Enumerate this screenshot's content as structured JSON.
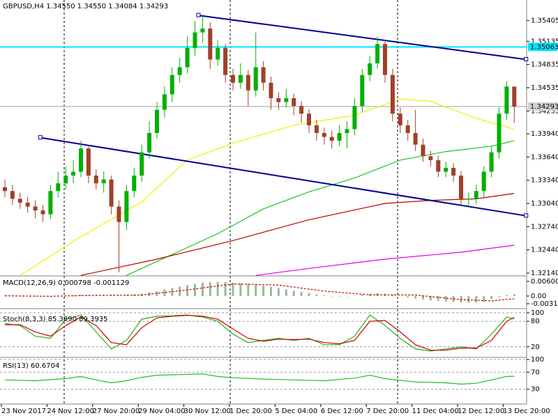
{
  "chart_data": [
    {
      "type": "candlestick",
      "title": "GBPUSD,H4  1.34550 1.34550 1.34084 1.34293",
      "up_color": "#00b000",
      "down_color": "#a0402a",
      "categories": [
        "23 Nov 2017",
        null,
        null,
        null,
        null,
        null,
        "24 Nov 12:00",
        null,
        null,
        null,
        null,
        null,
        "27 Nov 20:00",
        null,
        null,
        null,
        null,
        null,
        "29 Nov 04:00",
        null,
        null,
        null,
        null,
        null,
        "30 Nov 12:00",
        null,
        null,
        null,
        null,
        null,
        "1 Dec 20:00",
        null,
        null,
        null,
        null,
        null,
        "5 Dec 04:00",
        null,
        null,
        null,
        null,
        null,
        "6 Dec 12:00",
        null,
        null,
        null,
        null,
        null,
        "7 Dec 20:00",
        null,
        null,
        null,
        null,
        null,
        "11 Dec 04:00",
        null,
        null,
        null,
        null,
        null,
        "12 Dec 12:00",
        null,
        null,
        null,
        null,
        null,
        "13 Dec 20:00",
        null
      ],
      "ohlc": [
        [
          1.3325,
          1.3335,
          1.3312,
          1.332
        ],
        [
          1.332,
          1.3328,
          1.3302,
          1.331
        ],
        [
          1.331,
          1.3318,
          1.3297,
          1.3305
        ],
        [
          1.3305,
          1.3312,
          1.3292,
          1.33
        ],
        [
          1.33,
          1.3308,
          1.3285,
          1.3295
        ],
        [
          1.3295,
          1.3302,
          1.328,
          1.329
        ],
        [
          1.329,
          1.3328,
          1.3284,
          1.332
        ],
        [
          1.332,
          1.3345,
          1.3312,
          1.333
        ],
        [
          1.333,
          1.3352,
          1.3322,
          1.334
        ],
        [
          1.334,
          1.336,
          1.333,
          1.3345
        ],
        [
          1.3345,
          1.3385,
          1.3338,
          1.3375
        ],
        [
          1.3375,
          1.338,
          1.333,
          1.334
        ],
        [
          1.334,
          1.3348,
          1.3322,
          1.333
        ],
        [
          1.333,
          1.3345,
          1.3318,
          1.3335
        ],
        [
          1.3335,
          1.334,
          1.329,
          1.33
        ],
        [
          1.33,
          1.3308,
          1.3215,
          1.328
        ],
        [
          1.328,
          1.3328,
          1.327,
          1.332
        ],
        [
          1.332,
          1.335,
          1.3312,
          1.334
        ],
        [
          1.334,
          1.338,
          1.3332,
          1.337
        ],
        [
          1.337,
          1.341,
          1.3362,
          1.3395
        ],
        [
          1.3395,
          1.3435,
          1.3388,
          1.3425
        ],
        [
          1.3425,
          1.3455,
          1.3415,
          1.3445
        ],
        [
          1.3445,
          1.348,
          1.3435,
          1.347
        ],
        [
          1.347,
          1.3492,
          1.346,
          1.348
        ],
        [
          1.348,
          1.352,
          1.3472,
          1.3505
        ],
        [
          1.3505,
          1.354,
          1.3495,
          1.3525
        ],
        [
          1.3525,
          1.3545,
          1.3512,
          1.353
        ],
        [
          1.353,
          1.3538,
          1.3478,
          1.349
        ],
        [
          1.349,
          1.3515,
          1.3482,
          1.3505
        ],
        [
          1.3505,
          1.351,
          1.346,
          1.347
        ],
        [
          1.347,
          1.3478,
          1.345,
          1.346
        ],
        [
          1.346,
          1.3485,
          1.3452,
          1.347
        ],
        [
          1.347,
          1.3476,
          1.343,
          1.345
        ],
        [
          1.345,
          1.3525,
          1.3442,
          1.348
        ],
        [
          1.348,
          1.3488,
          1.345,
          1.346
        ],
        [
          1.346,
          1.3468,
          1.3425,
          1.344
        ],
        [
          1.344,
          1.3448,
          1.3425,
          1.3435
        ],
        [
          1.3435,
          1.3452,
          1.3428,
          1.344
        ],
        [
          1.344,
          1.3446,
          1.3418,
          1.343
        ],
        [
          1.343,
          1.3436,
          1.3408,
          1.342
        ],
        [
          1.342,
          1.3426,
          1.3395,
          1.3405
        ],
        [
          1.3405,
          1.3412,
          1.3385,
          1.3395
        ],
        [
          1.3395,
          1.3402,
          1.338,
          1.339
        ],
        [
          1.339,
          1.3398,
          1.3375,
          1.3385
        ],
        [
          1.3385,
          1.3405,
          1.3378,
          1.3395
        ],
        [
          1.3395,
          1.341,
          1.3375,
          1.34
        ],
        [
          1.34,
          1.344,
          1.3392,
          1.343
        ],
        [
          1.343,
          1.3478,
          1.3422,
          1.347
        ],
        [
          1.347,
          1.3495,
          1.3462,
          1.3485
        ],
        [
          1.3485,
          1.352,
          1.3478,
          1.351
        ],
        [
          1.351,
          1.3515,
          1.346,
          1.347
        ],
        [
          1.347,
          1.3478,
          1.341,
          1.342
        ],
        [
          1.342,
          1.3428,
          1.3395,
          1.3405
        ],
        [
          1.3405,
          1.3412,
          1.3385,
          1.3395
        ],
        [
          1.3395,
          1.3425,
          1.3372,
          1.338
        ],
        [
          1.338,
          1.3388,
          1.3358,
          1.3365
        ],
        [
          1.3365,
          1.3372,
          1.3352,
          1.336
        ],
        [
          1.336,
          1.3366,
          1.3338,
          1.3345
        ],
        [
          1.3345,
          1.3358,
          1.3338,
          1.335
        ],
        [
          1.335,
          1.3356,
          1.3332,
          1.334
        ],
        [
          1.334,
          1.3346,
          1.3302,
          1.331
        ],
        [
          1.331,
          1.3318,
          1.33,
          1.331
        ],
        [
          1.331,
          1.3328,
          1.3303,
          1.332
        ],
        [
          1.332,
          1.3352,
          1.3312,
          1.3345
        ],
        [
          1.3345,
          1.3378,
          1.3338,
          1.337
        ],
        [
          1.337,
          1.3428,
          1.3362,
          1.342
        ],
        [
          1.342,
          1.3462,
          1.3412,
          1.3455
        ],
        [
          1.3455,
          1.3455,
          1.34084,
          1.34293
        ]
      ],
      "ylim": [
        1.32113,
        1.35669
      ],
      "yticks": [
        1.35405,
        1.35135,
        1.34835,
        1.34535,
        1.34235,
        {
          "value": 1.3394,
          "label": "1.33940"
        },
        {
          "value": 1.3364,
          "label": "1.33640"
        },
        {
          "value": 1.3334,
          "label": "1.33340"
        },
        {
          "value": 1.3304,
          "label": "1.33040"
        },
        {
          "value": 1.3274,
          "label": "1.32740"
        },
        {
          "value": 1.3244,
          "label": "1.32440"
        },
        {
          "value": 1.3214,
          "label": "1.32140"
        }
      ],
      "moving_averages": [
        {
          "color": "#f0f000",
          "x": [
            2,
            10,
            18,
            24,
            30,
            38,
            46,
            52,
            56,
            62,
            67
          ],
          "values": [
            1.3211,
            1.3261,
            1.3306,
            1.336,
            1.3382,
            1.3405,
            1.3418,
            1.3439,
            1.3436,
            1.3414,
            1.34
          ]
        },
        {
          "color": "#20c020",
          "x": [
            16,
            22,
            28,
            34,
            40,
            46,
            52,
            58,
            64,
            67
          ],
          "values": [
            1.3211,
            1.3238,
            1.3265,
            1.3297,
            1.3319,
            1.3337,
            1.336,
            1.3371,
            1.3378,
            1.3385
          ]
        },
        {
          "color": "#c00000",
          "x": [
            10,
            20,
            30,
            40,
            50,
            56,
            62,
            67
          ],
          "values": [
            1.3211,
            1.3232,
            1.3256,
            1.3283,
            1.3304,
            1.3308,
            1.331,
            1.3317
          ]
        },
        {
          "color": "#e000e0",
          "x": [
            33,
            40,
            50,
            60,
            67
          ],
          "values": [
            1.3211,
            1.322,
            1.3232,
            1.3241,
            1.325
          ]
        }
      ],
      "trendlines": [
        {
          "color": "#000090",
          "x": [
            25.5,
            68.6
          ],
          "values": [
            1.3547,
            1.349
          ]
        },
        {
          "color": "#000090",
          "x": [
            4.7,
            68.6
          ],
          "values": [
            1.3389,
            1.3288
          ]
        }
      ],
      "hlines": [
        {
          "value": 1.35063,
          "color": "#00e5ff"
        },
        {
          "value": 1.34293,
          "color": "#a0a0a0"
        }
      ]
    },
    {
      "type": "macd",
      "title": "MACD(12,26,9) 0.000798 -0.001129",
      "ylim": [
        -0.0049,
        0.008
      ],
      "yticks": [
        0.006002,
        {
          "value": 0,
          "label": "0.00"
        },
        {
          "value": -0.003183,
          "label": "-0.00318"
        }
      ],
      "histogram": {
        "color": "#9ab89a",
        "values": [
          0.0002,
          0.0001,
          0,
          -0.0001,
          -0.0002,
          -0.0002,
          -0.0001,
          0,
          0.0002,
          0.0003,
          0.0005,
          0.0004,
          0.0004,
          0.0003,
          0.0002,
          0.0001,
          0.0003,
          0.0006,
          0.001,
          0.0015,
          0.002,
          0.0027,
          0.0033,
          0.0039,
          0.0045,
          0.005,
          0.0055,
          0.0057,
          0.0058,
          0.0057,
          0.0055,
          0.0052,
          0.0049,
          0.0046,
          0.0042,
          0.0037,
          0.0032,
          0.0027,
          0.0022,
          0.0017,
          0.0012,
          0.0007,
          0.0003,
          0,
          -0.0002,
          -0.0001,
          0.0002,
          0.0005,
          0.0009,
          0.0012,
          0.001,
          0.0005,
          0,
          -0.0005,
          -0.001,
          -0.0014,
          -0.0018,
          -0.002,
          -0.0022,
          -0.0024,
          -0.0026,
          -0.0027,
          -0.0026,
          -0.0024,
          -0.0012,
          -0.0004,
          0.0004,
          0.000798
        ]
      },
      "signal": {
        "color": "#d00000",
        "x": [
          0,
          6,
          12,
          18,
          24,
          30,
          36,
          42,
          48,
          54,
          60,
          64,
          67
        ],
        "values": [
          0.0001,
          -0.0001,
          0.0003,
          0.0004,
          0.0025,
          0.005,
          0.0045,
          0.002,
          0.0005,
          0.0004,
          -0.0015,
          -0.002,
          -0.001129
        ]
      }
    },
    {
      "type": "line",
      "title": "Stoch(8,3,3) 85.3890 89.3935",
      "ylim": [
        0,
        100
      ],
      "yticks": [
        100,
        80,
        20
      ],
      "series": [
        {
          "color": "#20b020",
          "x": [
            0,
            2,
            4,
            6,
            8,
            10,
            12,
            14,
            16,
            18,
            20,
            22,
            24,
            26,
            28,
            30,
            32,
            34,
            36,
            38,
            40,
            42,
            44,
            46,
            48,
            50,
            52,
            54,
            56,
            58,
            60,
            62,
            64,
            66,
            67
          ],
          "values": [
            75,
            70,
            45,
            40,
            85,
            95,
            55,
            15,
            35,
            85,
            92,
            93,
            95,
            90,
            80,
            50,
            30,
            35,
            40,
            35,
            40,
            25,
            25,
            45,
            95,
            70,
            40,
            15,
            10,
            15,
            20,
            15,
            50,
            90,
            85.389
          ]
        },
        {
          "color": "#d00000",
          "x": [
            0,
            2,
            4,
            6,
            8,
            10,
            12,
            14,
            16,
            18,
            20,
            22,
            24,
            26,
            28,
            30,
            32,
            34,
            36,
            38,
            40,
            42,
            44,
            46,
            48,
            50,
            52,
            54,
            56,
            58,
            60,
            62,
            64,
            66,
            67
          ],
          "values": [
            72,
            72,
            55,
            45,
            70,
            90,
            70,
            30,
            25,
            65,
            88,
            92,
            94,
            92,
            85,
            62,
            40,
            33,
            38,
            37,
            38,
            30,
            27,
            35,
            80,
            82,
            55,
            25,
            12,
            12,
            17,
            17,
            35,
            80,
            89.3935
          ]
        }
      ]
    },
    {
      "type": "line",
      "title": "RSI(13) 60.6704",
      "ylim": [
        0,
        100
      ],
      "yticks": [
        100,
        70,
        30
      ],
      "series": [
        {
          "color": "#20c020",
          "x": [
            0,
            4,
            8,
            10,
            12,
            14,
            16,
            18,
            20,
            24,
            26,
            28,
            30,
            34,
            38,
            42,
            46,
            48,
            50,
            54,
            58,
            60,
            62,
            64,
            66,
            67
          ],
          "values": [
            52,
            50,
            55,
            60,
            52,
            45,
            50,
            58,
            63,
            65,
            66,
            60,
            57,
            54,
            52,
            50,
            56,
            63,
            55,
            47,
            45,
            42,
            44,
            52,
            60,
            60.6704
          ]
        }
      ]
    }
  ]
}
